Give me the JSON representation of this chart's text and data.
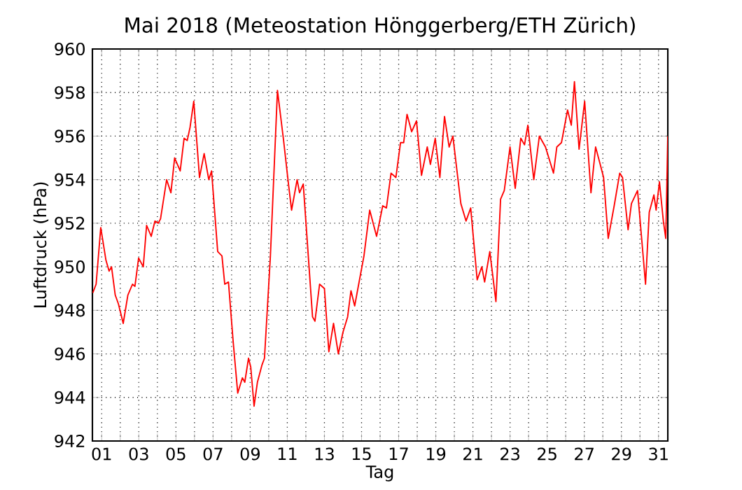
{
  "chart_data": {
    "type": "line",
    "title": "Mai 2018  (Meteostation Hönggerberg/ETH Zürich)",
    "xlabel": "Tag",
    "ylabel": "Luftdruck (hPa)",
    "xlim": [
      0.5,
      31.5
    ],
    "ylim": [
      942,
      960
    ],
    "grid": true,
    "xticks": [
      {
        "value": 1,
        "label": "01"
      },
      {
        "value": 2,
        "label": null
      },
      {
        "value": 3,
        "label": "03"
      },
      {
        "value": 4,
        "label": null
      },
      {
        "value": 5,
        "label": "05"
      },
      {
        "value": 6,
        "label": null
      },
      {
        "value": 7,
        "label": "07"
      },
      {
        "value": 8,
        "label": null
      },
      {
        "value": 9,
        "label": "09"
      },
      {
        "value": 10,
        "label": null
      },
      {
        "value": 11,
        "label": "11"
      },
      {
        "value": 12,
        "label": null
      },
      {
        "value": 13,
        "label": "13"
      },
      {
        "value": 14,
        "label": null
      },
      {
        "value": 15,
        "label": "15"
      },
      {
        "value": 16,
        "label": null
      },
      {
        "value": 17,
        "label": "17"
      },
      {
        "value": 18,
        "label": null
      },
      {
        "value": 19,
        "label": "19"
      },
      {
        "value": 20,
        "label": null
      },
      {
        "value": 21,
        "label": "21"
      },
      {
        "value": 22,
        "label": null
      },
      {
        "value": 23,
        "label": "23"
      },
      {
        "value": 24,
        "label": null
      },
      {
        "value": 25,
        "label": "25"
      },
      {
        "value": 26,
        "label": null
      },
      {
        "value": 27,
        "label": "27"
      },
      {
        "value": 28,
        "label": null
      },
      {
        "value": 29,
        "label": "29"
      },
      {
        "value": 30,
        "label": null
      },
      {
        "value": 31,
        "label": "31"
      }
    ],
    "yticks": [
      942,
      944,
      946,
      948,
      950,
      952,
      954,
      956,
      958,
      960
    ],
    "x": [
      0.52,
      0.7,
      0.95,
      1.08,
      1.23,
      1.4,
      1.53,
      1.73,
      1.9,
      2.16,
      2.41,
      2.66,
      2.79,
      2.99,
      3.24,
      3.42,
      3.67,
      3.87,
      4.05,
      4.17,
      4.5,
      4.73,
      4.93,
      5.23,
      5.44,
      5.61,
      5.76,
      5.96,
      6.27,
      6.52,
      6.77,
      6.92,
      7.25,
      7.48,
      7.63,
      7.83,
      8.08,
      8.33,
      8.58,
      8.71,
      8.91,
      9.03,
      9.21,
      9.39,
      9.64,
      9.77,
      10.09,
      10.47,
      10.8,
      11.05,
      11.23,
      11.53,
      11.66,
      11.86,
      12.36,
      12.49,
      12.74,
      13.0,
      13.24,
      13.49,
      13.75,
      14.0,
      14.25,
      14.43,
      14.63,
      14.89,
      15.13,
      15.44,
      15.81,
      16.14,
      16.34,
      16.59,
      16.85,
      17.1,
      17.27,
      17.45,
      17.7,
      17.96,
      18.23,
      18.54,
      18.71,
      18.97,
      19.22,
      19.47,
      19.72,
      19.92,
      20.35,
      20.63,
      20.88,
      21.23,
      21.48,
      21.63,
      21.91,
      22.24,
      22.49,
      22.69,
      23.0,
      23.28,
      23.58,
      23.78,
      23.96,
      24.28,
      24.58,
      24.91,
      25.34,
      25.52,
      25.77,
      26.1,
      26.3,
      26.47,
      26.72,
      27.02,
      27.36,
      27.61,
      27.86,
      28.04,
      28.29,
      28.61,
      28.91,
      29.06,
      29.36,
      29.54,
      29.87,
      30.3,
      30.5,
      30.75,
      30.87,
      31.05,
      31.26,
      31.39,
      31.5
    ],
    "series": [
      {
        "color": "#ff0000",
        "values": [
          948.8,
          949.2,
          951.8,
          951.1,
          950.3,
          949.8,
          950.0,
          948.7,
          948.3,
          947.4,
          948.7,
          949.2,
          949.1,
          950.4,
          950.0,
          951.9,
          951.4,
          952.1,
          952.0,
          952.2,
          954.0,
          953.4,
          955.0,
          954.4,
          955.9,
          955.8,
          956.4,
          957.6,
          954.1,
          955.2,
          954.0,
          954.4,
          950.7,
          950.5,
          949.2,
          949.3,
          946.6,
          944.2,
          944.9,
          944.7,
          945.8,
          945.4,
          943.6,
          944.7,
          945.5,
          945.8,
          950.5,
          958.1,
          955.8,
          953.9,
          952.6,
          954.0,
          953.4,
          953.8,
          947.7,
          947.5,
          949.2,
          949.0,
          946.1,
          947.4,
          946.0,
          947.0,
          947.7,
          948.9,
          948.2,
          949.4,
          950.5,
          952.6,
          951.4,
          952.8,
          952.7,
          954.3,
          954.1,
          955.7,
          955.7,
          957.0,
          956.2,
          956.7,
          954.2,
          955.5,
          954.7,
          955.9,
          954.1,
          956.9,
          955.5,
          956.0,
          952.9,
          952.1,
          952.7,
          949.4,
          950.0,
          949.3,
          950.7,
          948.4,
          953.1,
          953.5,
          955.5,
          953.6,
          955.9,
          955.6,
          956.5,
          954.0,
          956.0,
          955.5,
          954.3,
          955.5,
          955.7,
          957.2,
          956.5,
          958.5,
          955.4,
          957.6,
          953.4,
          955.5,
          954.7,
          954.1,
          951.3,
          952.8,
          954.3,
          954.1,
          951.7,
          952.9,
          953.5,
          949.2,
          952.5,
          953.3,
          952.6,
          953.9,
          952.1,
          951.3,
          956.0
        ]
      }
    ]
  }
}
